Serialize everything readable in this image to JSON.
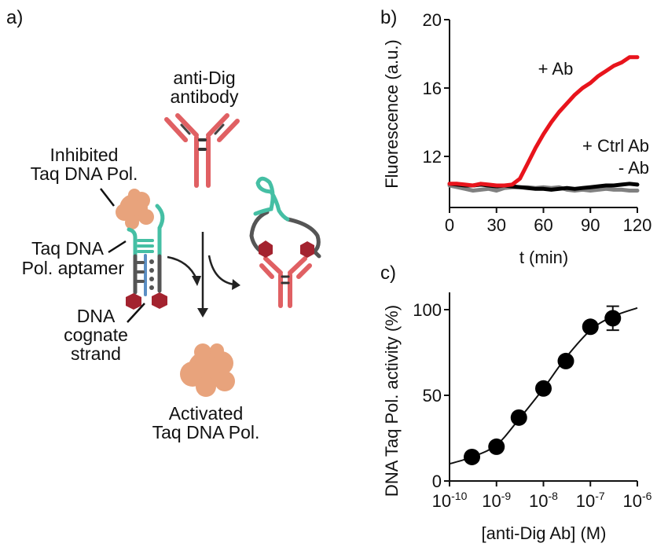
{
  "panels": {
    "a": "a)",
    "b": "b)",
    "c": "c)"
  },
  "diagram": {
    "antibody_label": [
      "anti-Dig",
      "antibody"
    ],
    "inhibited_label": [
      "Inhibited",
      "Taq DNA Pol."
    ],
    "aptamer_label": [
      "Taq DNA",
      "Pol. aptamer"
    ],
    "cognate_label": [
      "DNA",
      "cognate",
      "strand"
    ],
    "activated_label": [
      "Activated",
      "Taq DNA Pol."
    ],
    "colors": {
      "antibody": "#e06063",
      "aptamer": "#45bfa4",
      "dna": "#555555",
      "cognate": "#5b8fc4",
      "hapten": "#a3232f",
      "polymerase": "#e8a37c"
    }
  },
  "chart_data": [
    {
      "type": "line",
      "xlabel": "t (min)",
      "ylabel": "Fluorescence (a.u.)",
      "xlim": [
        0,
        120
      ],
      "ylim": [
        9.6,
        20
      ],
      "xticks": [
        "0",
        "30",
        "60",
        "90",
        "120"
      ],
      "yticks": [
        "12",
        "16",
        "20"
      ],
      "grid": false,
      "x": [
        0,
        5,
        10,
        15,
        20,
        25,
        30,
        35,
        40,
        45,
        50,
        55,
        60,
        65,
        70,
        75,
        80,
        85,
        90,
        95,
        100,
        105,
        110,
        115,
        120
      ],
      "series": [
        {
          "name": "+ Ab",
          "color": "#e8141c",
          "values": [
            10.4,
            10.4,
            10.35,
            10.3,
            10.4,
            10.35,
            10.3,
            10.3,
            10.35,
            10.7,
            11.6,
            12.5,
            13.3,
            14.0,
            14.6,
            15.1,
            15.6,
            16.0,
            16.3,
            16.7,
            17.0,
            17.3,
            17.5,
            17.8,
            17.8
          ]
        },
        {
          "name": "+ Ctrl Ab",
          "color": "#808080",
          "values": [
            10.3,
            10.2,
            10.1,
            10.0,
            10.05,
            10.1,
            10.0,
            10.15,
            10.2,
            10.2,
            10.2,
            10.15,
            10.2,
            10.15,
            10.2,
            10.05,
            10.0,
            10.05,
            10.0,
            10.05,
            10.1,
            10.05,
            10.05,
            10.0,
            10.0
          ]
        },
        {
          "name": "- Ab",
          "color": "#000000",
          "values": [
            10.4,
            10.35,
            10.3,
            10.3,
            10.35,
            10.3,
            10.25,
            10.3,
            10.25,
            10.2,
            10.15,
            10.1,
            10.1,
            10.05,
            10.1,
            10.15,
            10.1,
            10.15,
            10.2,
            10.25,
            10.3,
            10.3,
            10.35,
            10.4,
            10.35
          ]
        }
      ]
    },
    {
      "type": "scatter",
      "xlabel": "[anti-Dig Ab] (M)",
      "ylabel": "DNA Taq Pol. activity (%)",
      "xscale": "log",
      "xlim": [
        1e-10,
        1e-06
      ],
      "ylim": [
        0,
        110
      ],
      "xticks": [
        {
          "base": "10",
          "exp": "-10"
        },
        {
          "base": "10",
          "exp": "-9"
        },
        {
          "base": "10",
          "exp": "-8"
        },
        {
          "base": "10",
          "exp": "-7"
        },
        {
          "base": "10",
          "exp": "-6"
        }
      ],
      "yticks": [
        "0",
        "50",
        "100"
      ],
      "grid": false,
      "points": [
        {
          "x": 3e-10,
          "y": 14
        },
        {
          "x": 1e-09,
          "y": 20
        },
        {
          "x": 3e-09,
          "y": 37
        },
        {
          "x": 1e-08,
          "y": 54
        },
        {
          "x": 3e-08,
          "y": 70
        },
        {
          "x": 1e-07,
          "y": 90
        },
        {
          "x": 3e-07,
          "y": 95,
          "err": 7
        }
      ],
      "fit_curve": {
        "x": [
          1e-10,
          3e-10,
          1e-09,
          3e-09,
          1e-08,
          3e-08,
          1e-07,
          3e-07,
          1e-06
        ],
        "y": [
          10,
          14,
          21,
          36,
          54,
          72,
          88,
          96,
          101
        ]
      }
    }
  ]
}
